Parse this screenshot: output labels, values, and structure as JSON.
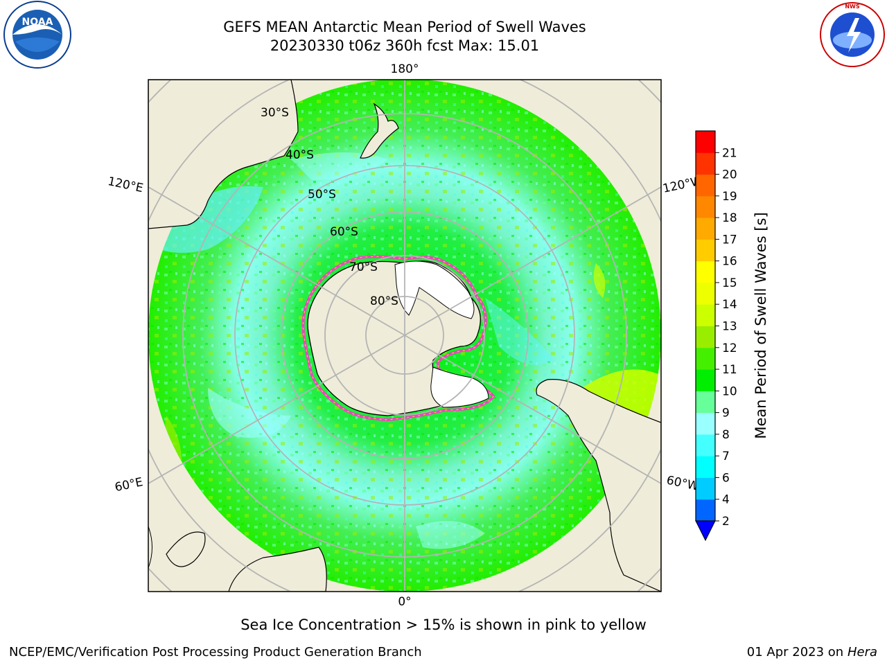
{
  "title": {
    "line1": "GEFS MEAN Antarctic Mean Period of Swell Waves",
    "line2": "20230330 t06z 360h fcst   Max: 15.01"
  },
  "logos": {
    "left": {
      "icon": "noaa-logo-icon",
      "text": "NOAA"
    },
    "right": {
      "icon": "nws-logo-icon",
      "text": "NATIONAL WEATHER SERVICE"
    }
  },
  "map": {
    "projection": "south polar stereographic",
    "longitude_labels": {
      "top": "180°",
      "bottom": "0°",
      "upper_left": "120°E",
      "lower_left": "60°E",
      "upper_right": "120°W",
      "lower_right": "60°W"
    },
    "latitude_labels": [
      "30°S",
      "40°S",
      "50°S",
      "60°S",
      "70°S",
      "80°S"
    ],
    "colors": {
      "land": "#efecd9",
      "sea_ice_mask": "#ffffff",
      "graticule": "#b4b4b4",
      "ice_edge": [
        "#ff33cc",
        "#ff66ff",
        "#ffcc33"
      ]
    }
  },
  "colorbar": {
    "label": "Mean Period of Swell Waves [s]",
    "ticks": [
      "2",
      "4",
      "6",
      "7",
      "8",
      "9",
      "10",
      "11",
      "12",
      "13",
      "14",
      "15",
      "16",
      "17",
      "18",
      "19",
      "20",
      "21"
    ],
    "bins": [
      "#0066ff",
      "#00ccff",
      "#00ffff",
      "#44ffff",
      "#99ffff",
      "#66ff99",
      "#00ee00",
      "#44f000",
      "#99ee00",
      "#ccff00",
      "#eeff00",
      "#ffff00",
      "#ffcc00",
      "#ffaa00",
      "#ff8800",
      "#ff6600",
      "#ff3300",
      "#ff0000"
    ],
    "under_color": "#0000ff",
    "extend": "min"
  },
  "footer": {
    "note": "Sea Ice Concentration > 15% is shown in pink to yellow",
    "left": "NCEP/EMC/Verification Post Processing Product Generation Branch",
    "right_date": "01 Apr 2023 on ",
    "right_host": "Hera"
  }
}
